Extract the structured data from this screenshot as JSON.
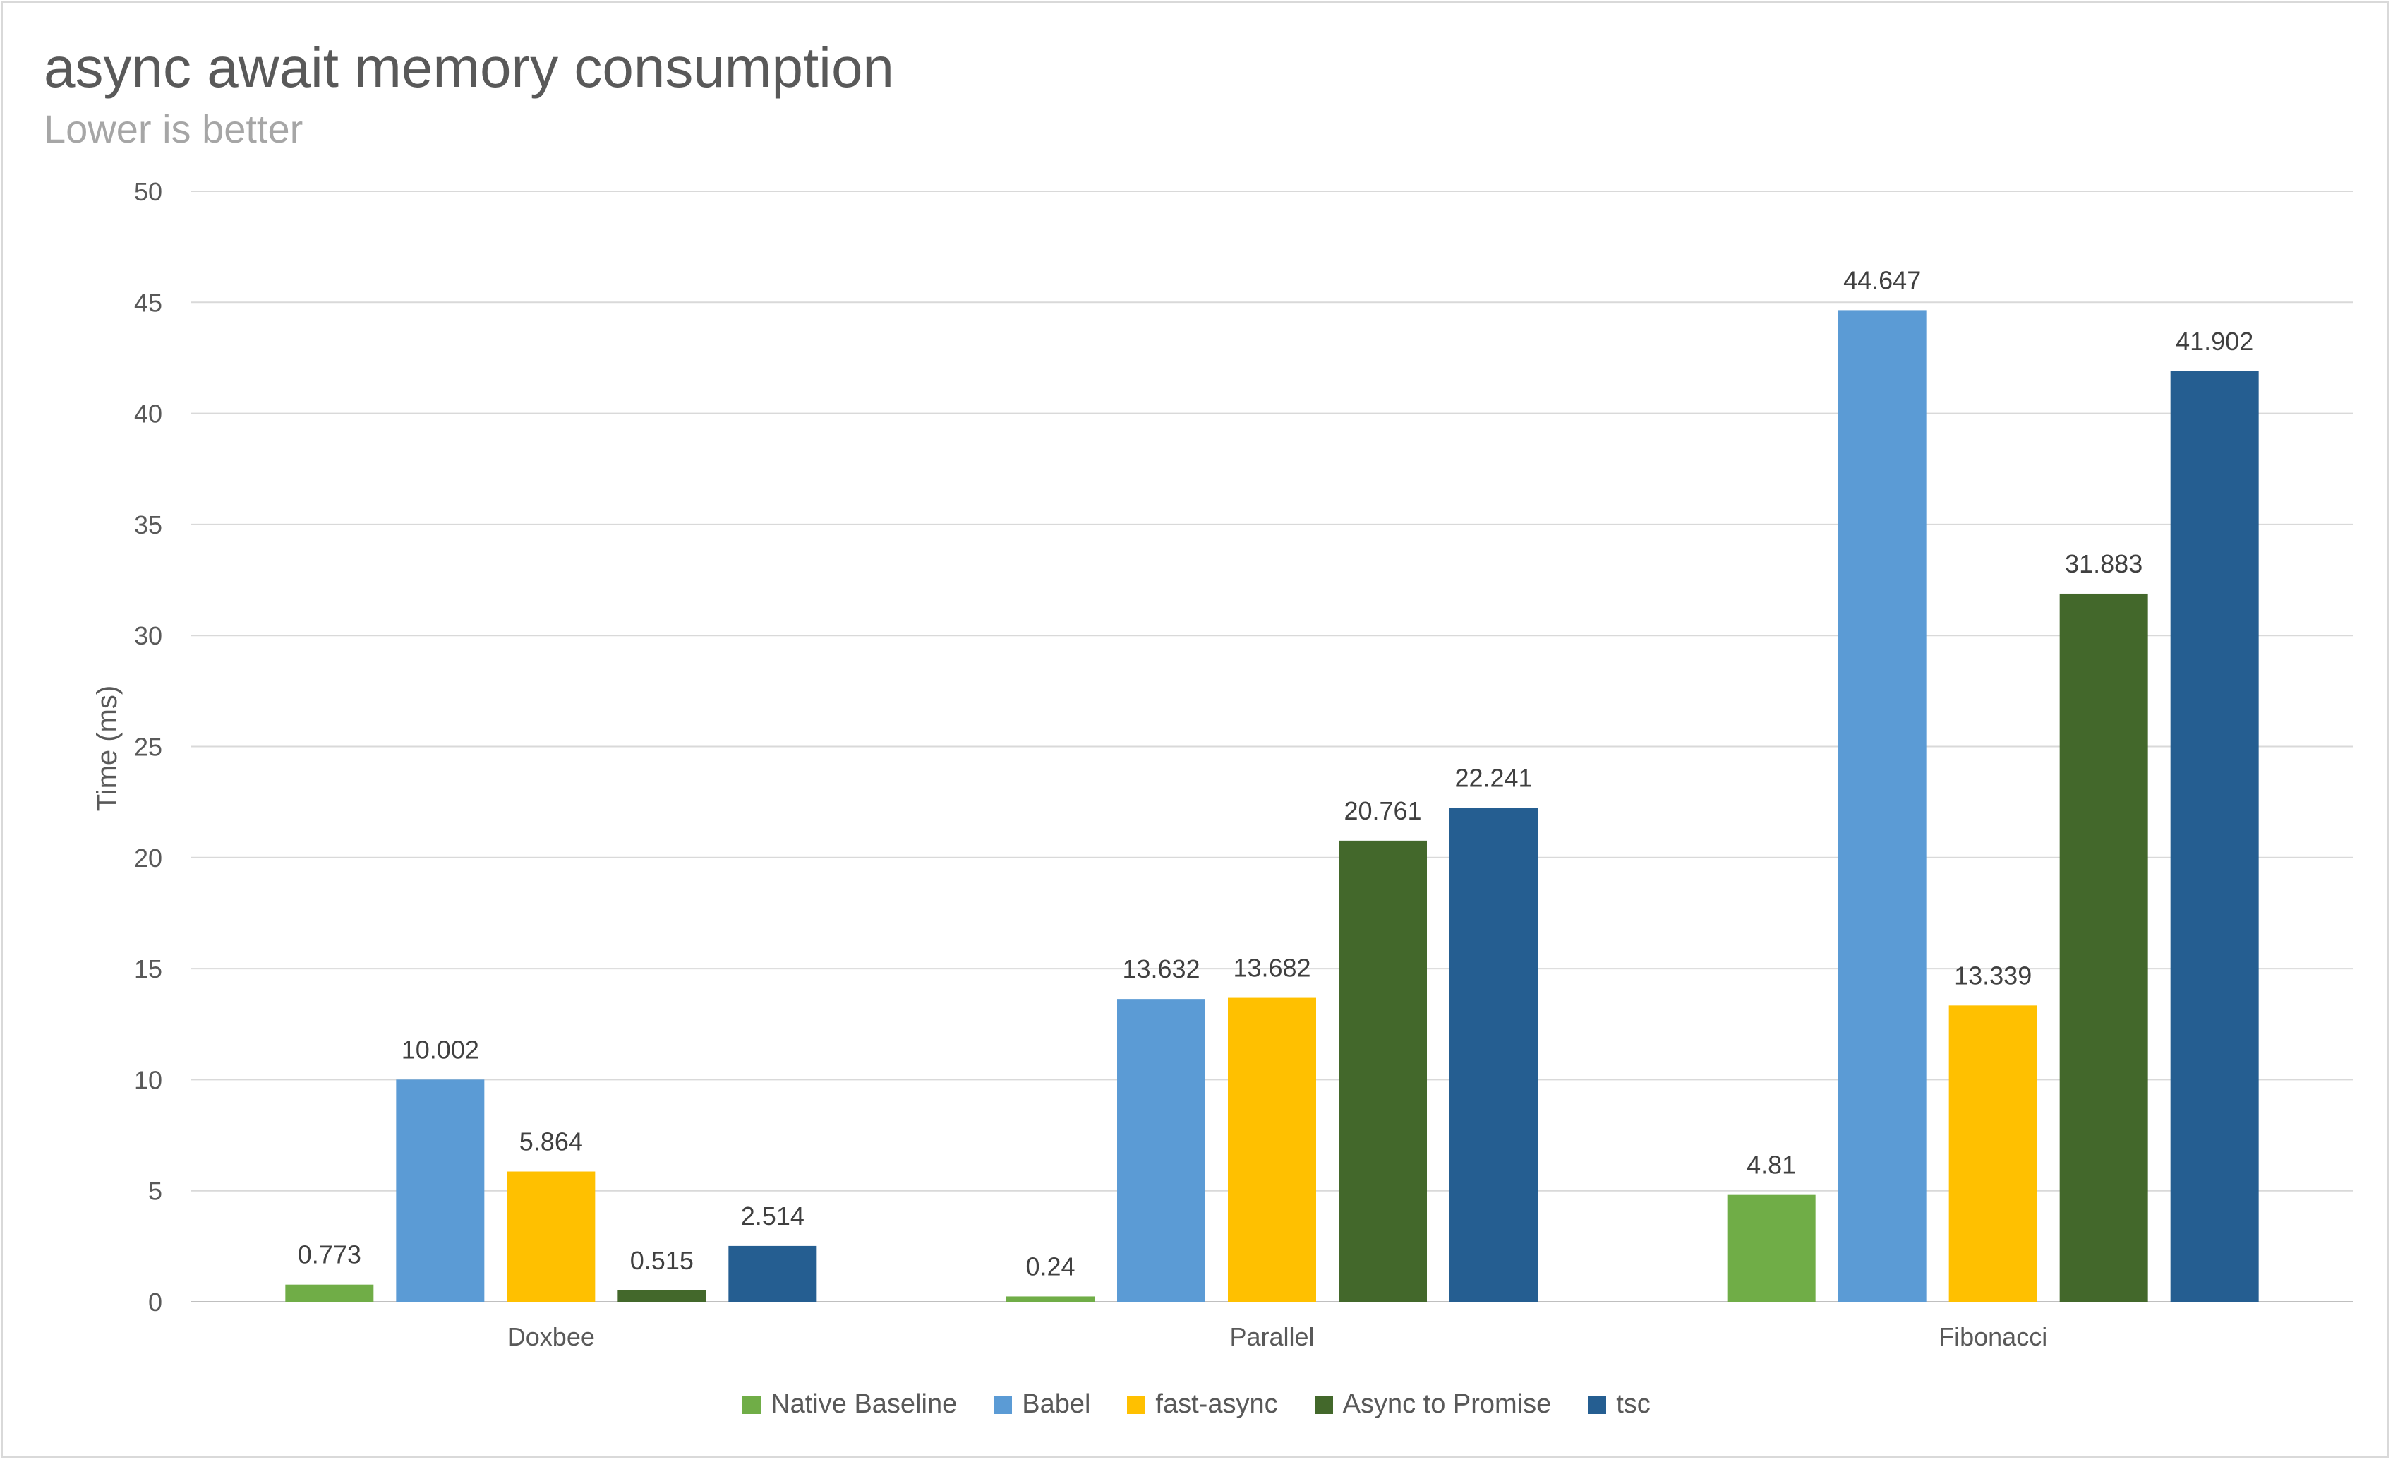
{
  "chart_data": {
    "type": "bar",
    "title": "async await memory consumption",
    "subtitle": "Lower is better",
    "xlabel": "",
    "ylabel": "Time (ms)",
    "ylim": [
      0,
      50
    ],
    "yticks": [
      0,
      5,
      10,
      15,
      20,
      25,
      30,
      35,
      40,
      45,
      50
    ],
    "grid": true,
    "legend_position": "bottom",
    "categories": [
      "Doxbee",
      "Parallel",
      "Fibonacci"
    ],
    "series": [
      {
        "name": "Native Baseline",
        "color": "#70ad47",
        "values": [
          0.773,
          0.24,
          4.81
        ],
        "labels": [
          "0.773",
          "0.24",
          "4.81"
        ]
      },
      {
        "name": "Babel",
        "color": "#5b9bd5",
        "values": [
          10.002,
          13.632,
          44.647
        ],
        "labels": [
          "10.002",
          "13.632",
          "44.647"
        ]
      },
      {
        "name": "fast-async",
        "color": "#ffc000",
        "values": [
          5.864,
          13.682,
          13.339
        ],
        "labels": [
          "5.864",
          "13.682",
          "13.339"
        ]
      },
      {
        "name": "Async to Promise",
        "color": "#43682b",
        "values": [
          0.515,
          20.761,
          31.883
        ],
        "labels": [
          "0.515",
          "20.761",
          "31.883"
        ]
      },
      {
        "name": "tsc",
        "color": "#255e91",
        "values": [
          2.514,
          22.241,
          41.902
        ],
        "labels": [
          "2.514",
          "22.241",
          "41.902"
        ]
      }
    ]
  }
}
